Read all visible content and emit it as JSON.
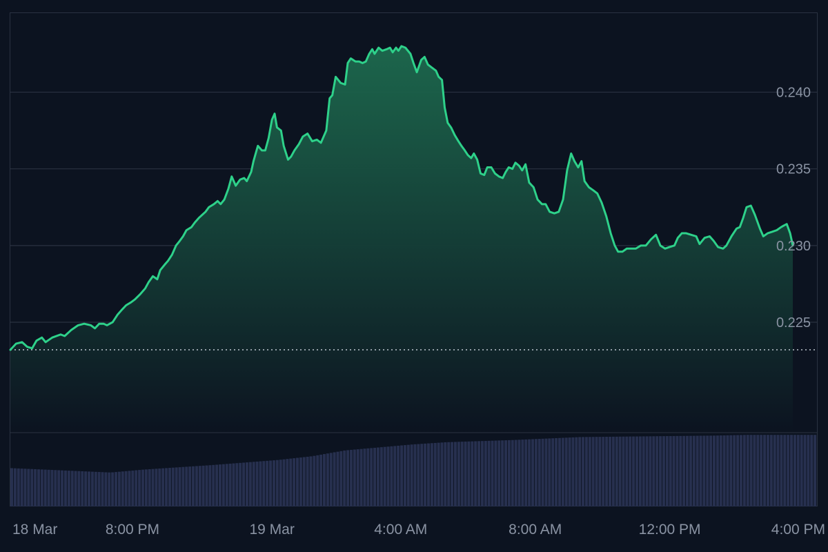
{
  "chart_data": {
    "type": "area",
    "title": "",
    "xlabel": "",
    "ylabel": "",
    "colors": {
      "background": "#0c1320",
      "line": "#2ed18a",
      "fill_top": "#1d6a4e",
      "fill_bottom": "#0c1320",
      "grid": "#2a3241",
      "reference_line": "#cfd6e0",
      "volume": "#27304f",
      "axis_text": "#8a93a3"
    },
    "ylim": [
      0.2178,
      0.2452
    ],
    "y_ticks": [
      {
        "value": 0.24,
        "label": "0.240"
      },
      {
        "value": 0.235,
        "label": "0.235"
      },
      {
        "value": 0.23,
        "label": "0.230"
      },
      {
        "value": 0.225,
        "label": "0.225"
      }
    ],
    "reference_value": 0.2232,
    "x_range_hours": [
      0,
      24.05
    ],
    "x_ticks": [
      {
        "hour": 0.07,
        "label": "18 Mar"
      },
      {
        "hour": 3.64,
        "label": "8:00 PM"
      },
      {
        "hour": 7.8,
        "label": "19 Mar"
      },
      {
        "hour": 11.64,
        "label": "4:00 AM"
      },
      {
        "hour": 15.65,
        "label": "8:00 AM"
      },
      {
        "hour": 19.66,
        "label": "12:00 PM"
      },
      {
        "hour": 23.69,
        "label": "4:00 PM"
      }
    ],
    "price_series": {
      "name": "",
      "points": [
        [
          0.0,
          0.2232
        ],
        [
          0.17,
          0.2236
        ],
        [
          0.35,
          0.2237
        ],
        [
          0.5,
          0.2234
        ],
        [
          0.65,
          0.2233
        ],
        [
          0.78,
          0.2238
        ],
        [
          0.94,
          0.224
        ],
        [
          1.05,
          0.2237
        ],
        [
          1.25,
          0.224
        ],
        [
          1.5,
          0.2242
        ],
        [
          1.62,
          0.2241
        ],
        [
          1.82,
          0.2245
        ],
        [
          2.02,
          0.2248
        ],
        [
          2.2,
          0.2249
        ],
        [
          2.4,
          0.2248
        ],
        [
          2.52,
          0.2246
        ],
        [
          2.65,
          0.2249
        ],
        [
          2.78,
          0.2249
        ],
        [
          2.88,
          0.2248
        ],
        [
          3.05,
          0.225
        ],
        [
          3.2,
          0.2255
        ],
        [
          3.32,
          0.2258
        ],
        [
          3.45,
          0.2261
        ],
        [
          3.6,
          0.2263
        ],
        [
          3.72,
          0.2265
        ],
        [
          3.86,
          0.2268
        ],
        [
          4.02,
          0.2272
        ],
        [
          4.12,
          0.2276
        ],
        [
          4.25,
          0.228
        ],
        [
          4.38,
          0.2278
        ],
        [
          4.47,
          0.2284
        ],
        [
          4.62,
          0.2288
        ],
        [
          4.7,
          0.229
        ],
        [
          4.82,
          0.2294
        ],
        [
          4.94,
          0.23
        ],
        [
          5.05,
          0.2303
        ],
        [
          5.15,
          0.2306
        ],
        [
          5.25,
          0.231
        ],
        [
          5.4,
          0.2312
        ],
        [
          5.5,
          0.2315
        ],
        [
          5.62,
          0.2318
        ],
        [
          5.72,
          0.232
        ],
        [
          5.82,
          0.2322
        ],
        [
          5.92,
          0.2325
        ],
        [
          6.07,
          0.2327
        ],
        [
          6.18,
          0.2329
        ],
        [
          6.27,
          0.2327
        ],
        [
          6.38,
          0.233
        ],
        [
          6.5,
          0.2337
        ],
        [
          6.6,
          0.2345
        ],
        [
          6.72,
          0.2339
        ],
        [
          6.85,
          0.2343
        ],
        [
          6.97,
          0.2344
        ],
        [
          7.05,
          0.2342
        ],
        [
          7.18,
          0.2348
        ],
        [
          7.25,
          0.2355
        ],
        [
          7.38,
          0.2365
        ],
        [
          7.5,
          0.2362
        ],
        [
          7.6,
          0.2362
        ],
        [
          7.7,
          0.237
        ],
        [
          7.8,
          0.2382
        ],
        [
          7.88,
          0.2386
        ],
        [
          7.95,
          0.2377
        ],
        [
          8.07,
          0.2375
        ],
        [
          8.15,
          0.2365
        ],
        [
          8.28,
          0.2356
        ],
        [
          8.37,
          0.2358
        ],
        [
          8.47,
          0.2362
        ],
        [
          8.6,
          0.2366
        ],
        [
          8.72,
          0.2371
        ],
        [
          8.86,
          0.2373
        ],
        [
          9.0,
          0.2368
        ],
        [
          9.14,
          0.2369
        ],
        [
          9.26,
          0.2367
        ],
        [
          9.42,
          0.2375
        ],
        [
          9.52,
          0.2396
        ],
        [
          9.6,
          0.2398
        ],
        [
          9.7,
          0.241
        ],
        [
          9.85,
          0.2406
        ],
        [
          9.98,
          0.2405
        ],
        [
          10.06,
          0.2419
        ],
        [
          10.15,
          0.2422
        ],
        [
          10.29,
          0.242
        ],
        [
          10.4,
          0.242
        ],
        [
          10.5,
          0.2419
        ],
        [
          10.6,
          0.242
        ],
        [
          10.7,
          0.2425
        ],
        [
          10.79,
          0.2428
        ],
        [
          10.86,
          0.2425
        ],
        [
          10.98,
          0.2429
        ],
        [
          11.09,
          0.2427
        ],
        [
          11.22,
          0.2428
        ],
        [
          11.32,
          0.2429
        ],
        [
          11.4,
          0.2426
        ],
        [
          11.5,
          0.2429
        ],
        [
          11.57,
          0.2427
        ],
        [
          11.66,
          0.243
        ],
        [
          11.78,
          0.2429
        ],
        [
          11.93,
          0.2425
        ],
        [
          12.02,
          0.2419
        ],
        [
          12.12,
          0.2413
        ],
        [
          12.25,
          0.2421
        ],
        [
          12.35,
          0.2423
        ],
        [
          12.45,
          0.2418
        ],
        [
          12.57,
          0.2416
        ],
        [
          12.69,
          0.2414
        ],
        [
          12.77,
          0.241
        ],
        [
          12.87,
          0.2408
        ],
        [
          12.95,
          0.239
        ],
        [
          13.04,
          0.238
        ],
        [
          13.14,
          0.2377
        ],
        [
          13.25,
          0.2372
        ],
        [
          13.36,
          0.2368
        ],
        [
          13.45,
          0.2365
        ],
        [
          13.55,
          0.2362
        ],
        [
          13.64,
          0.2359
        ],
        [
          13.74,
          0.2357
        ],
        [
          13.82,
          0.236
        ],
        [
          13.92,
          0.2356
        ],
        [
          14.02,
          0.2347
        ],
        [
          14.13,
          0.2346
        ],
        [
          14.22,
          0.2351
        ],
        [
          14.34,
          0.2351
        ],
        [
          14.45,
          0.2347
        ],
        [
          14.57,
          0.2345
        ],
        [
          14.68,
          0.2344
        ],
        [
          14.77,
          0.2348
        ],
        [
          14.86,
          0.2351
        ],
        [
          14.97,
          0.235
        ],
        [
          15.06,
          0.2354
        ],
        [
          15.17,
          0.2352
        ],
        [
          15.26,
          0.2349
        ],
        [
          15.36,
          0.2353
        ],
        [
          15.47,
          0.2341
        ],
        [
          15.6,
          0.2338
        ],
        [
          15.72,
          0.233
        ],
        [
          15.85,
          0.2327
        ],
        [
          15.96,
          0.2327
        ],
        [
          16.08,
          0.2322
        ],
        [
          16.22,
          0.2321
        ],
        [
          16.35,
          0.2322
        ],
        [
          16.48,
          0.233
        ],
        [
          16.6,
          0.2349
        ],
        [
          16.72,
          0.236
        ],
        [
          16.82,
          0.2355
        ],
        [
          16.93,
          0.2351
        ],
        [
          17.03,
          0.2355
        ],
        [
          17.12,
          0.2342
        ],
        [
          17.25,
          0.2338
        ],
        [
          17.38,
          0.2336
        ],
        [
          17.5,
          0.2334
        ],
        [
          17.63,
          0.2328
        ],
        [
          17.77,
          0.2319
        ],
        [
          17.9,
          0.2308
        ],
        [
          18.02,
          0.23
        ],
        [
          18.12,
          0.2296
        ],
        [
          18.25,
          0.2296
        ],
        [
          18.38,
          0.2298
        ],
        [
          18.52,
          0.2298
        ],
        [
          18.65,
          0.2298
        ],
        [
          18.8,
          0.23
        ],
        [
          18.95,
          0.23
        ],
        [
          19.1,
          0.2304
        ],
        [
          19.25,
          0.2307
        ],
        [
          19.38,
          0.23
        ],
        [
          19.52,
          0.2298
        ],
        [
          19.65,
          0.2299
        ],
        [
          19.8,
          0.23
        ],
        [
          19.9,
          0.2305
        ],
        [
          20.02,
          0.2308
        ],
        [
          20.15,
          0.2308
        ],
        [
          20.3,
          0.2307
        ],
        [
          20.45,
          0.2306
        ],
        [
          20.55,
          0.2301
        ],
        [
          20.7,
          0.2305
        ],
        [
          20.85,
          0.2306
        ],
        [
          20.97,
          0.2303
        ],
        [
          21.1,
          0.2299
        ],
        [
          21.25,
          0.2298
        ],
        [
          21.35,
          0.23
        ],
        [
          21.5,
          0.2306
        ],
        [
          21.65,
          0.2311
        ],
        [
          21.75,
          0.2312
        ],
        [
          21.85,
          0.2318
        ],
        [
          21.95,
          0.2325
        ],
        [
          22.08,
          0.2326
        ],
        [
          22.2,
          0.232
        ],
        [
          22.35,
          0.2311
        ],
        [
          22.45,
          0.2306
        ],
        [
          22.58,
          0.2308
        ],
        [
          22.72,
          0.2309
        ],
        [
          22.85,
          0.231
        ],
        [
          22.98,
          0.2312
        ],
        [
          23.06,
          0.2313
        ],
        [
          23.15,
          0.2314
        ],
        [
          23.25,
          0.2308
        ],
        [
          23.33,
          0.23
        ]
      ]
    },
    "volume_series": {
      "name": "",
      "x_range_hours": [
        0,
        24.05
      ],
      "volume_domain_max": 1,
      "bar_count": 240,
      "relative_levels": [
        [
          0,
          0.52
        ],
        [
          3,
          0.46
        ],
        [
          4,
          0.5
        ],
        [
          6,
          0.56
        ],
        [
          8,
          0.63
        ],
        [
          9,
          0.68
        ],
        [
          10,
          0.76
        ],
        [
          11,
          0.8
        ],
        [
          12,
          0.84
        ],
        [
          13,
          0.87
        ],
        [
          15,
          0.9
        ],
        [
          16,
          0.92
        ],
        [
          17,
          0.94
        ],
        [
          19,
          0.95
        ],
        [
          21,
          0.96
        ],
        [
          22,
          0.97
        ],
        [
          24.05,
          0.97
        ]
      ]
    }
  }
}
